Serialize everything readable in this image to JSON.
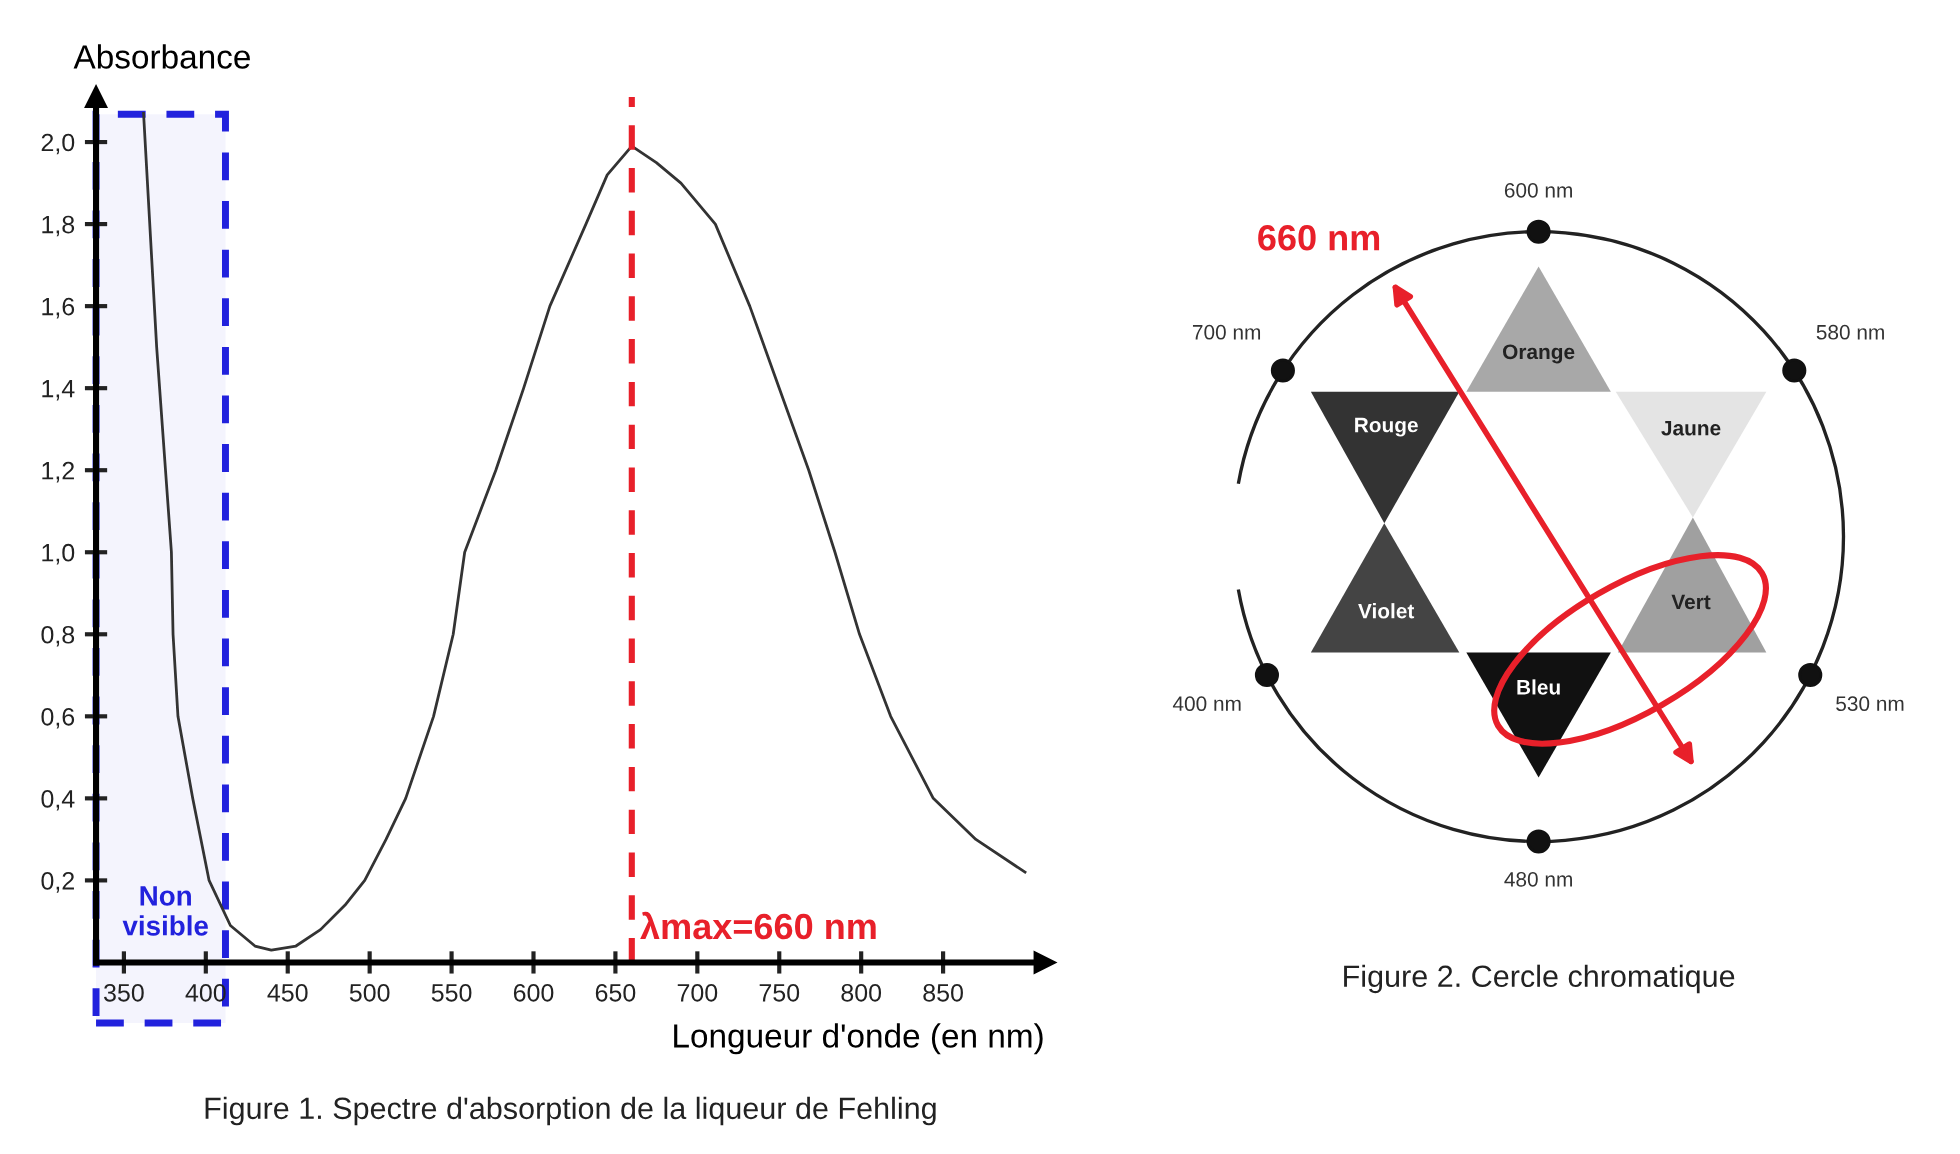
{
  "chart_data": [
    {
      "type": "line",
      "title": "Figure 1. Spectre d'absorption de la liqueur de Fehling",
      "xlabel": "Longueur d'onde (en nm)",
      "ylabel": "Absorbance",
      "series": [
        {
          "color": "#333333",
          "x": [
            362,
            370,
            379,
            380,
            383,
            392,
            402,
            415,
            430,
            440,
            455,
            470,
            485,
            497,
            510,
            522,
            539,
            551,
            558,
            577,
            594,
            610,
            632,
            645,
            660,
            675,
            690,
            711,
            732,
            750,
            768,
            784,
            799,
            818,
            844,
            870,
            900
          ],
          "values": [
            2.07,
            1.5,
            1.0,
            0.8,
            0.6,
            0.4,
            0.2,
            0.09,
            0.04,
            0.03,
            0.04,
            0.08,
            0.14,
            0.2,
            0.3,
            0.4,
            0.6,
            0.8,
            1.0,
            1.2,
            1.4,
            1.6,
            1.8,
            1.92,
            1.99,
            1.95,
            1.9,
            1.8,
            1.6,
            1.4,
            1.2,
            1.0,
            0.8,
            0.6,
            0.4,
            0.3,
            0.22
          ]
        }
      ],
      "xlim": [
        333,
        912
      ],
      "ylim": [
        0,
        2.11
      ],
      "xticks": [
        350,
        400,
        450,
        500,
        550,
        600,
        650,
        700,
        750,
        800,
        850
      ],
      "yticks": [
        {
          "value": 0.2,
          "label": "0,2"
        },
        {
          "value": 0.4,
          "label": "0,4"
        },
        {
          "value": 0.6,
          "label": "0,6"
        },
        {
          "value": 0.8,
          "label": "0,8"
        },
        {
          "value": 1.0,
          "label": "1,0"
        },
        {
          "value": 1.2,
          "label": "1,2"
        },
        {
          "value": 1.4,
          "label": "1,4"
        },
        {
          "value": 1.6,
          "label": "1,6"
        },
        {
          "value": 1.8,
          "label": "1,8"
        },
        {
          "value": 2.0,
          "label": "2,0"
        }
      ],
      "ref_lines": [
        {
          "axis": "x",
          "value": 660,
          "label": "λmax=660 nm",
          "color": "#e8202a",
          "line_style": "dashed"
        }
      ],
      "bands": [
        {
          "axis": "x",
          "from": 333,
          "to": 412,
          "label": "Non\nvisible",
          "color": "#2222dd"
        }
      ],
      "grid": false,
      "legend": false,
      "marker": "none",
      "line_style": "solid"
    },
    {
      "type": "other",
      "title": "Figure 2. Cercle chromatique",
      "annotations": [
        "600 nm",
        "580 nm",
        "530 nm",
        "480 nm",
        "400 nm",
        "700 nm",
        "Orange",
        "Jaune",
        "Vert",
        "Bleu",
        "Violet",
        "Rouge",
        "660 nm"
      ]
    }
  ]
}
